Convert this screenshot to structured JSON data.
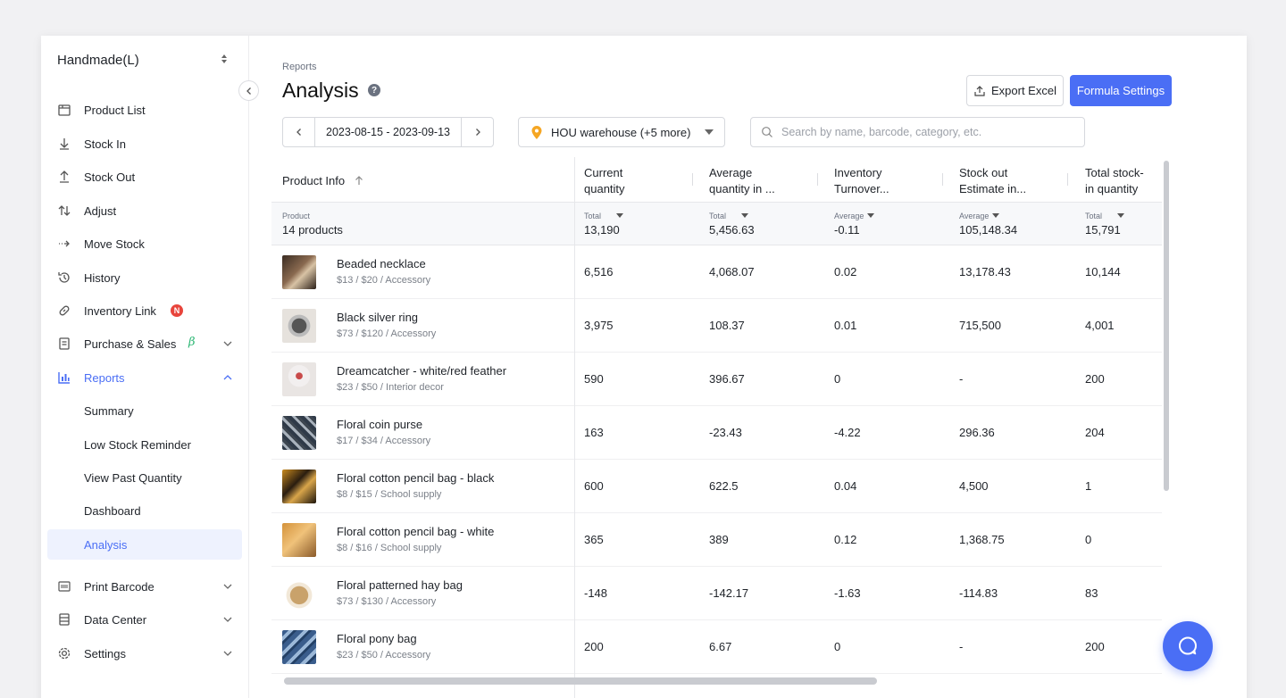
{
  "sidebar": {
    "brand": "Handmade(L)",
    "items": [
      {
        "label": "Product List",
        "icon": "box-icon"
      },
      {
        "label": "Stock In",
        "icon": "arrow-down-icon"
      },
      {
        "label": "Stock Out",
        "icon": "arrow-up-icon"
      },
      {
        "label": "Adjust",
        "icon": "adjust-arrows-icon"
      },
      {
        "label": "Move Stock",
        "icon": "move-arrow-icon"
      },
      {
        "label": "History",
        "icon": "history-icon"
      },
      {
        "label": "Inventory Link",
        "icon": "link-icon",
        "badge": "N"
      },
      {
        "label": "Purchase & Sales",
        "icon": "document-icon",
        "beta": "β"
      },
      {
        "label": "Reports",
        "icon": "bar-chart-icon"
      },
      {
        "label": "Summary"
      },
      {
        "label": "Low Stock Reminder"
      },
      {
        "label": "View Past Quantity"
      },
      {
        "label": "Dashboard"
      },
      {
        "label": "Analysis"
      },
      {
        "label": "Print Barcode",
        "icon": "barcode-icon"
      },
      {
        "label": "Data Center",
        "icon": "database-icon"
      },
      {
        "label": "Settings",
        "icon": "gear-icon"
      }
    ]
  },
  "header": {
    "breadcrumb": "Reports",
    "title": "Analysis",
    "help": "?",
    "export_label": "Export Excel",
    "formula_label": "Formula Settings"
  },
  "filters": {
    "date_range": "2023-08-15 - 2023-09-13",
    "warehouse": "HOU warehouse  (+5 more)",
    "search_placeholder": "Search by name, barcode, category, etc."
  },
  "table": {
    "columns": [
      {
        "line1": "Product Info",
        "line2": ""
      },
      {
        "line1": "Current",
        "line2": "quantity"
      },
      {
        "line1": "Average",
        "line2": "quantity in ..."
      },
      {
        "line1": "Inventory",
        "line2": "Turnover..."
      },
      {
        "line1": "Stock out",
        "line2": "Estimate in..."
      },
      {
        "line1": "Total stock-",
        "line2": "in quantity"
      }
    ],
    "summary": [
      {
        "label": "Product",
        "value": "14 products"
      },
      {
        "label": "Total",
        "value": "13,190"
      },
      {
        "label": "Total",
        "value": "5,456.63"
      },
      {
        "label": "Average",
        "value": "-0.11"
      },
      {
        "label": "Average",
        "value": "105,148.34"
      },
      {
        "label": "Total",
        "value": "15,791"
      }
    ],
    "rows": [
      {
        "name": "Beaded necklace",
        "meta": "$13 / $20 / Accessory",
        "cells": [
          "6,516",
          "4,068.07",
          "0.02",
          "13,178.43",
          "10,144"
        ]
      },
      {
        "name": "Black silver ring",
        "meta": "$73 / $120 / Accessory",
        "cells": [
          "3,975",
          "108.37",
          "0.01",
          "715,500",
          "4,001"
        ]
      },
      {
        "name": "Dreamcatcher - white/red feather",
        "meta": "$23 / $50 / Interior decor",
        "cells": [
          "590",
          "396.67",
          "0",
          "-",
          "200"
        ]
      },
      {
        "name": "Floral coin purse",
        "meta": "$17 / $34 / Accessory",
        "cells": [
          "163",
          "-23.43",
          "-4.22",
          "296.36",
          "204"
        ]
      },
      {
        "name": "Floral cotton pencil bag - black",
        "meta": "$8 / $15 / School supply",
        "cells": [
          "600",
          "622.5",
          "0.04",
          "4,500",
          "1"
        ]
      },
      {
        "name": "Floral cotton pencil bag - white",
        "meta": "$8 / $16 / School supply",
        "cells": [
          "365",
          "389",
          "0.12",
          "1,368.75",
          "0"
        ]
      },
      {
        "name": "Floral patterned hay bag",
        "meta": "$73 / $130 / Accessory",
        "cells": [
          "-148",
          "-142.17",
          "-1.63",
          "-114.83",
          "83"
        ]
      },
      {
        "name": "Floral pony bag",
        "meta": "$23 / $50 / Accessory",
        "cells": [
          "200",
          "6.67",
          "0",
          "-",
          "200"
        ]
      }
    ]
  },
  "colors": {
    "accent": "#4a6ef5",
    "badge": "#e8453c",
    "beta": "#2bb673"
  }
}
